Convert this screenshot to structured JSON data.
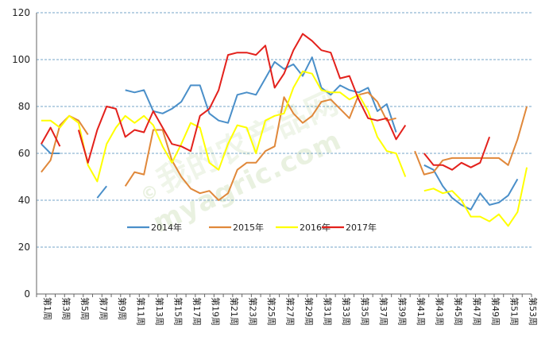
{
  "watermark": {
    "text": "myagric.com",
    "cn_text": "我的农产品网",
    "copyright": "©"
  },
  "chart_data": {
    "type": "line",
    "title": "",
    "xlabel": "",
    "ylabel": "",
    "ylim": [
      0,
      120
    ],
    "yticks": [
      0,
      20,
      40,
      60,
      80,
      100,
      120
    ],
    "grid": true,
    "legend": "inside-bottom-center",
    "categories": [
      "第1周",
      "第2周",
      "第3周",
      "第4周",
      "第5周",
      "第6周",
      "第7周",
      "第8周",
      "第9周",
      "第10周",
      "第11周",
      "第12周",
      "第13周",
      "第14周",
      "第15周",
      "第16周",
      "第17周",
      "第18周",
      "第19周",
      "第20周",
      "第21周",
      "第22周",
      "第23周",
      "第24周",
      "第25周",
      "第26周",
      "第27周",
      "第28周",
      "第29周",
      "第30周",
      "第31周",
      "第32周",
      "第33周",
      "第34周",
      "第35周",
      "第36周",
      "第37周",
      "第38周",
      "第39周",
      "第40周",
      "第41周",
      "第42周",
      "第43周",
      "第44周",
      "第45周",
      "第46周",
      "第47周",
      "第48周",
      "第49周",
      "第50周",
      "第51周",
      "第52周",
      "第53周"
    ],
    "tick_labels": [
      "第1周",
      "第3周",
      "第5周",
      "第7周",
      "第9周",
      "第11周",
      "第13周",
      "第15周",
      "第17周",
      "第19周",
      "第21周",
      "第23周",
      "第25周",
      "第27周",
      "第29周",
      "第31周",
      "第33周",
      "第35周",
      "第37周",
      "第39周",
      "第41周",
      "第43周",
      "第45周",
      "第47周",
      "第49周",
      "第51周",
      "第53周"
    ],
    "series": [
      {
        "name": "2014年",
        "color": "#4a8fc9",
        "values": [
          64,
          60,
          60,
          null,
          null,
          null,
          41,
          46,
          null,
          87,
          86,
          87,
          78,
          77,
          79,
          82,
          89,
          89,
          77,
          74,
          73,
          85,
          86,
          85,
          92,
          99,
          96,
          98,
          93,
          101,
          88,
          85,
          89,
          87,
          86,
          88,
          78,
          81,
          69,
          null,
          null,
          55,
          53,
          46,
          41,
          38,
          36,
          43,
          38,
          39,
          42,
          49,
          null
        ]
      },
      {
        "name": "2015年",
        "color": "#e0883a",
        "values": [
          52,
          57,
          72,
          76,
          74,
          68,
          null,
          null,
          null,
          46,
          52,
          51,
          70,
          70,
          57,
          50,
          45,
          43,
          44,
          40,
          43,
          53,
          56,
          56,
          61,
          63,
          84,
          77,
          73,
          76,
          82,
          83,
          79,
          75,
          85,
          86,
          82,
          74,
          75,
          null,
          61,
          51,
          52,
          57,
          58,
          58,
          58,
          58,
          58,
          58,
          55,
          66,
          80
        ]
      },
      {
        "name": "2016年",
        "color": "#ffff00",
        "values": [
          74,
          74,
          71,
          76,
          73,
          55,
          48,
          64,
          71,
          76,
          73,
          76,
          72,
          63,
          56,
          64,
          73,
          71,
          56,
          53,
          64,
          72,
          71,
          60,
          74,
          76,
          77,
          88,
          95,
          94,
          87,
          86,
          86,
          83,
          85,
          78,
          67,
          61,
          60,
          50,
          null,
          44,
          45,
          43,
          44,
          40,
          33,
          33,
          31,
          34,
          29,
          35,
          54
        ]
      },
      {
        "name": "2017年",
        "color": "#e3211c",
        "values": [
          64,
          71,
          63,
          null,
          70,
          56,
          70,
          80,
          79,
          67,
          70,
          69,
          78,
          71,
          64,
          63,
          61,
          76,
          79,
          87,
          102,
          103,
          103,
          102,
          106,
          88,
          94,
          104,
          111,
          108,
          104,
          103,
          92,
          93,
          83,
          75,
          74,
          75,
          66,
          72,
          null,
          60,
          55,
          55,
          53,
          56,
          54,
          56,
          67,
          null,
          null,
          null,
          null
        ]
      }
    ]
  }
}
